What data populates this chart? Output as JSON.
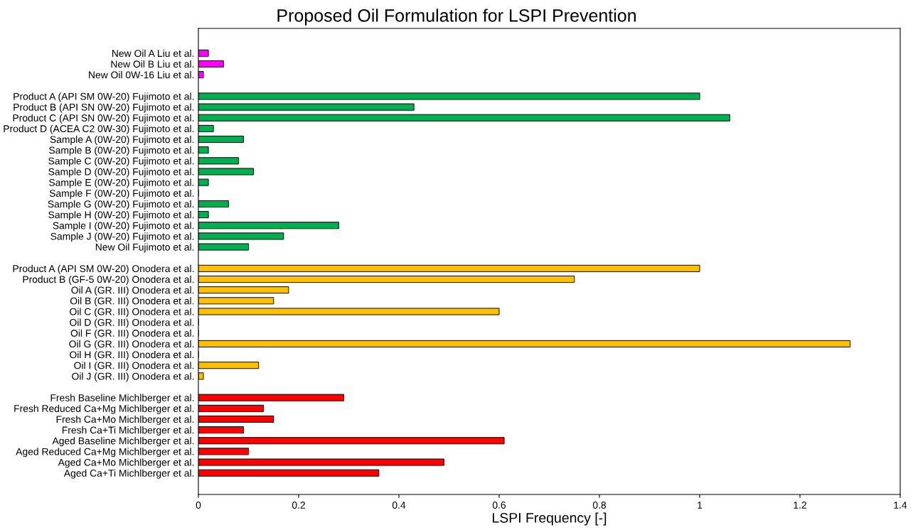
{
  "chart_data": {
    "type": "bar",
    "orientation": "horizontal",
    "title": "Proposed Oil Formulation for LSPI Prevention",
    "xlabel": "LSPI Frequency [-]",
    "categories": [
      "New Oil A Liu et al.",
      "New Oil B Liu et al.",
      "New Oil 0W-16 Liu et al.",
      null,
      "Product A (API SM 0W-20) Fujimoto et al.",
      "Product B (API SN 0W-20) Fujimoto et al.",
      "Product C (API SN 0W-20) Fujimoto et al.",
      "Product D (ACEA C2 0W-30) Fujimoto et al.",
      "Sample A (0W-20) Fujimoto et al.",
      "Sample B (0W-20) Fujimoto et al.",
      "Sample C (0W-20) Fujimoto et al.",
      "Sample D (0W-20) Fujimoto et al.",
      "Sample E (0W-20) Fujimoto et al.",
      "Sample F (0W-20) Fujimoto et al.",
      "Sample G (0W-20) Fujimoto et al.",
      "Sample H (0W-20) Fujimoto et al.",
      "Sample I (0W-20) Fujimoto et al.",
      "Sample J (0W-20) Fujimoto et al.",
      "New Oil Fujimoto et al.",
      null,
      "Product A (API SM 0W-20) Onodera et al.",
      "Product B (GF-5 0W-20) Onodera et al.",
      "Oil A (GR. III) Onodera et al.",
      "Oil B (GR. III) Onodera et al.",
      "Oil C (GR. III) Onodera et al.",
      "Oil D (GR. III) Onodera et al.",
      "Oil F (GR. III) Onodera et al.",
      "Oil G (GR. III) Onodera et al.",
      "Oil H (GR. III) Onodera et al.",
      "Oil I (GR. III) Onodera et al.",
      "Oil J (GR. III) Onodera et al.",
      null,
      "Fresh Baseline Michlberger et al.",
      "Fresh Reduced Ca+Mg Michlberger et al.",
      "Fresh Ca+Mo Michlberger et al.",
      "Fresh Ca+Ti Michlberger et al.",
      "Aged Baseline Michlberger et al.",
      "Aged Reduced Ca+Mg Michlberger et al.",
      "Aged Ca+Mo Michlberger et al.",
      "Aged Ca+Ti Michlberger et al."
    ],
    "values": [
      0.02,
      0.05,
      0.01,
      null,
      1.0,
      0.43,
      1.06,
      0.03,
      0.09,
      0.02,
      0.08,
      0.11,
      0.02,
      0,
      0.06,
      0.02,
      0.28,
      0.17,
      0.1,
      null,
      1.0,
      0.75,
      0.18,
      0.15,
      0.6,
      0,
      0,
      1.3,
      0,
      0.12,
      0.01,
      null,
      0.29,
      0.13,
      0.15,
      0.09,
      0.61,
      0.1,
      0.49,
      0.36
    ],
    "colors": [
      "#ff00ff",
      "#ff00ff",
      "#ff00ff",
      null,
      "#00b050",
      "#00b050",
      "#00b050",
      "#00b050",
      "#00b050",
      "#00b050",
      "#00b050",
      "#00b050",
      "#00b050",
      "#00b050",
      "#00b050",
      "#00b050",
      "#00b050",
      "#00b050",
      "#00b050",
      null,
      "#ffc000",
      "#ffc000",
      "#ffc000",
      "#ffc000",
      "#ffc000",
      "#ffc000",
      "#ffc000",
      "#ffc000",
      "#ffc000",
      "#ffc000",
      "#ffc000",
      null,
      "#ff0000",
      "#ff0000",
      "#ff0000",
      "#ff0000",
      "#ff0000",
      "#ff0000",
      "#ff0000",
      "#ff0000"
    ],
    "xlim": [
      0,
      1.4
    ],
    "xticks": [
      0,
      0.2,
      0.4,
      0.6,
      0.8,
      1,
      1.2,
      1.4
    ],
    "grid": false,
    "legend": false
  }
}
